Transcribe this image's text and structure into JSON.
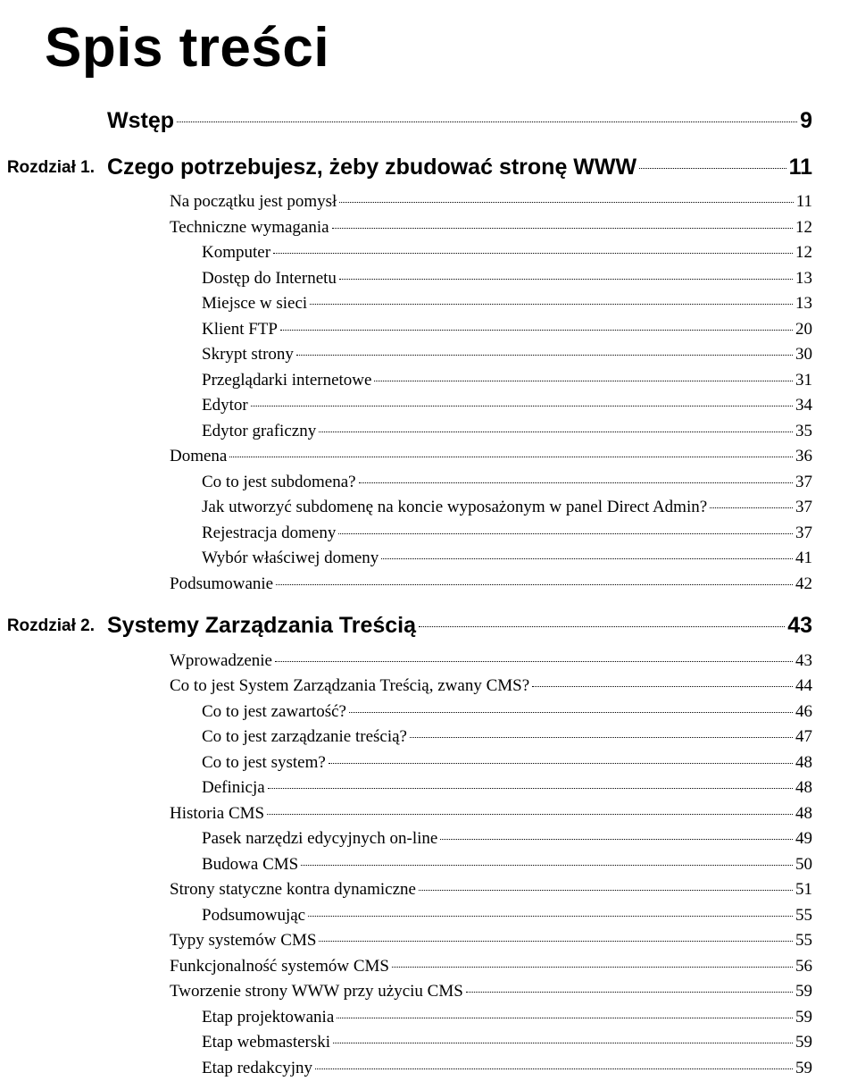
{
  "title": "Spis treści",
  "entries": [
    {
      "level": 1,
      "chapter": "",
      "label": "Wstęp",
      "page": "9"
    },
    {
      "level": 1,
      "chapter": "Rozdział 1.",
      "label": "Czego potrzebujesz, żeby zbudować stronę WWW",
      "page": "11"
    },
    {
      "level": 2,
      "label": "Na początku jest pomysł",
      "page": "11"
    },
    {
      "level": 2,
      "label": "Techniczne wymagania",
      "page": "12"
    },
    {
      "level": 3,
      "label": "Komputer",
      "page": "12"
    },
    {
      "level": 3,
      "label": "Dostęp do Internetu",
      "page": "13"
    },
    {
      "level": 3,
      "label": "Miejsce w sieci",
      "page": "13"
    },
    {
      "level": 3,
      "label": "Klient FTP",
      "page": "20"
    },
    {
      "level": 3,
      "label": "Skrypt strony",
      "page": "30"
    },
    {
      "level": 3,
      "label": "Przeglądarki internetowe",
      "page": "31"
    },
    {
      "level": 3,
      "label": "Edytor",
      "page": "34"
    },
    {
      "level": 3,
      "label": "Edytor graficzny",
      "page": "35"
    },
    {
      "level": 2,
      "label": "Domena",
      "page": "36"
    },
    {
      "level": 3,
      "label": "Co to jest subdomena?",
      "page": "37"
    },
    {
      "level": 3,
      "label": "Jak utworzyć subdomenę na koncie wyposażonym w panel Direct Admin?",
      "page": "37"
    },
    {
      "level": 3,
      "label": "Rejestracja domeny",
      "page": "37"
    },
    {
      "level": 3,
      "label": "Wybór właściwej domeny",
      "page": "41"
    },
    {
      "level": 2,
      "label": "Podsumowanie",
      "page": "42"
    },
    {
      "level": 1,
      "chapter": "Rozdział 2.",
      "label": "Systemy Zarządzania Treścią",
      "page": "43"
    },
    {
      "level": 2,
      "label": "Wprowadzenie",
      "page": "43"
    },
    {
      "level": 2,
      "label": "Co to jest System Zarządzania Treścią, zwany CMS?",
      "page": "44"
    },
    {
      "level": 3,
      "label": "Co to jest zawartość?",
      "page": "46"
    },
    {
      "level": 3,
      "label": "Co to jest zarządzanie treścią?",
      "page": "47"
    },
    {
      "level": 3,
      "label": "Co to jest system?",
      "page": "48"
    },
    {
      "level": 3,
      "label": "Definicja",
      "page": "48"
    },
    {
      "level": 2,
      "label": "Historia CMS",
      "page": "48"
    },
    {
      "level": 3,
      "label": "Pasek narzędzi edycyjnych on-line",
      "page": "49"
    },
    {
      "level": 3,
      "label": "Budowa CMS",
      "page": "50"
    },
    {
      "level": 2,
      "label": "Strony statyczne kontra dynamiczne",
      "page": "51"
    },
    {
      "level": 3,
      "label": "Podsumowując",
      "page": "55"
    },
    {
      "level": 2,
      "label": "Typy systemów CMS",
      "page": "55"
    },
    {
      "level": 2,
      "label": "Funkcjonalność systemów CMS",
      "page": "56"
    },
    {
      "level": 2,
      "label": "Tworzenie strony WWW przy użyciu CMS",
      "page": "59"
    },
    {
      "level": 3,
      "label": "Etap projektowania",
      "page": "59"
    },
    {
      "level": 3,
      "label": "Etap webmasterski",
      "page": "59"
    },
    {
      "level": 3,
      "label": "Etap redakcyjny",
      "page": "59"
    }
  ]
}
